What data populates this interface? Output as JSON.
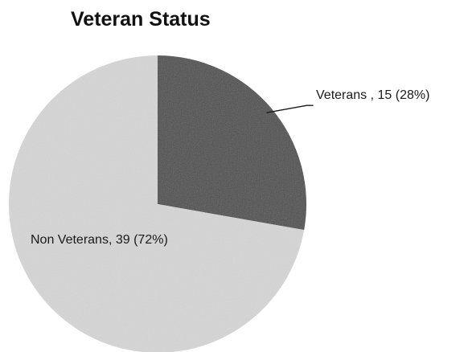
{
  "chart_data": {
    "type": "pie",
    "title": "Veteran Status",
    "slices": [
      {
        "name": "Veterans",
        "value": 15,
        "percent": 28,
        "label": "Veterans , 15 (28%)",
        "color": "#4f4f4f"
      },
      {
        "name": "Non Veterans",
        "value": 39,
        "percent": 72,
        "label": "Non Veterans, 39 (72%)",
        "color": "#d6d6d6"
      }
    ],
    "legend": "none",
    "data_labels": "outside-leader for Veterans, inside for Non Veterans",
    "start_angle_deg": 0,
    "direction": "clockwise"
  }
}
